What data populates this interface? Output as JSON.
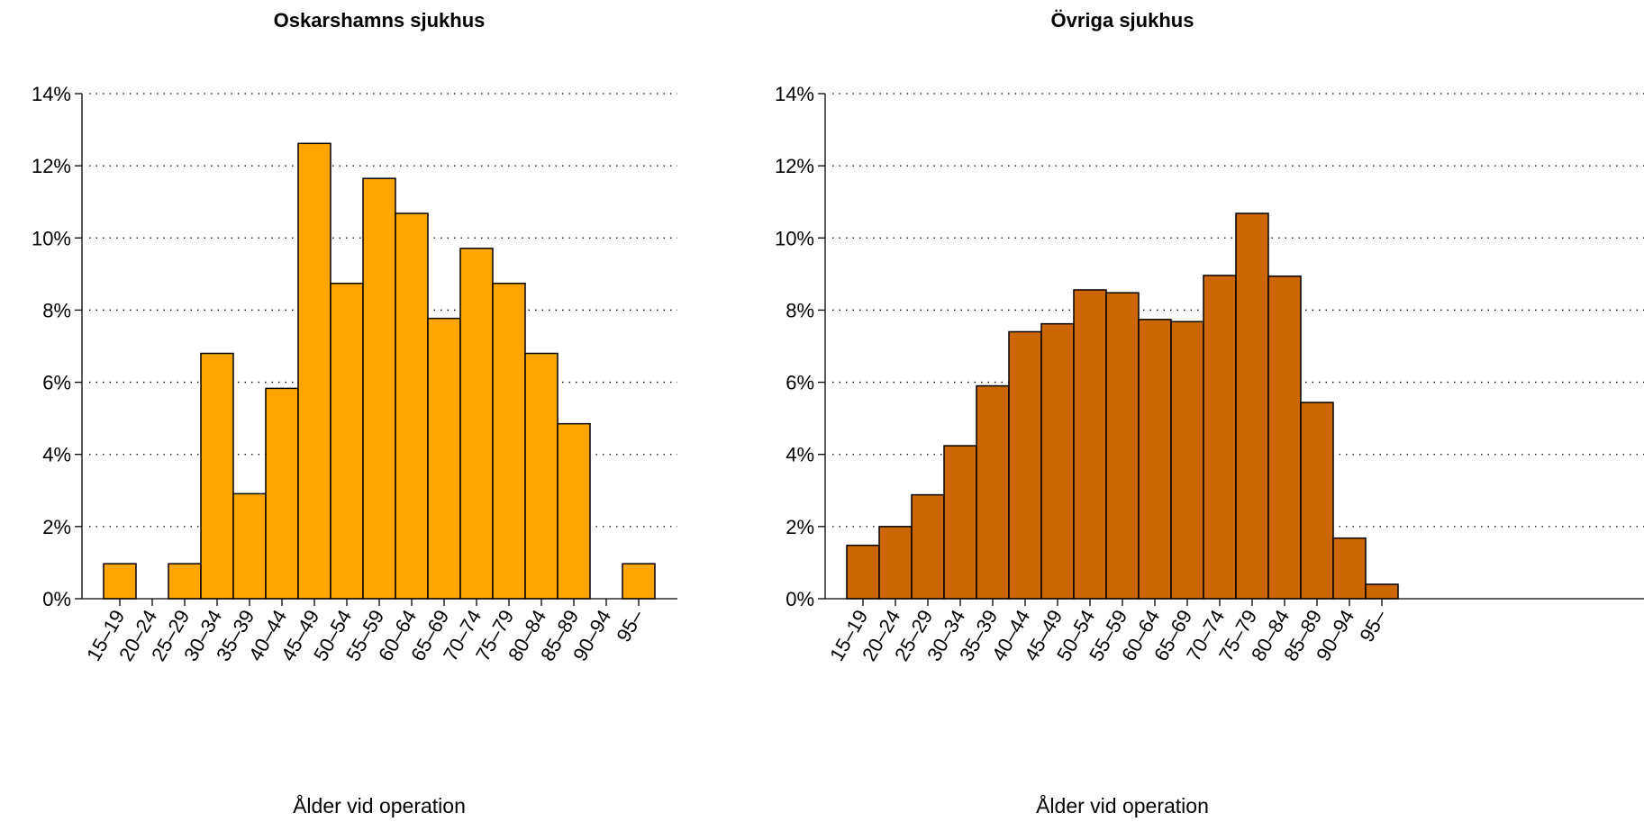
{
  "chart_data": [
    {
      "type": "bar",
      "title": "Oskarshamns sjukhus",
      "xlabel": "Ålder vid operation",
      "ylabel": "",
      "ylim": [
        0,
        14
      ],
      "yticks": [
        "0%",
        "2%",
        "4%",
        "6%",
        "8%",
        "10%",
        "12%",
        "14%"
      ],
      "grid": true,
      "color": "#FFA500",
      "categories": [
        "15–19",
        "20–24",
        "25–29",
        "30–34",
        "35–39",
        "40–44",
        "45–49",
        "50–54",
        "55–59",
        "60–64",
        "65–69",
        "70–74",
        "75–79",
        "80–84",
        "85–89",
        "90–94",
        "95–"
      ],
      "values": [
        0.97,
        0,
        0.97,
        6.8,
        2.91,
        5.83,
        12.62,
        8.74,
        11.65,
        10.68,
        7.77,
        9.71,
        8.74,
        6.8,
        4.85,
        0,
        0.97
      ]
    },
    {
      "type": "bar",
      "title": "Övriga sjukhus",
      "xlabel": "Ålder vid operation",
      "ylabel": "",
      "ylim": [
        0,
        14
      ],
      "yticks": [
        "0%",
        "2%",
        "4%",
        "6%",
        "8%",
        "10%",
        "12%",
        "14%"
      ],
      "grid": true,
      "color": "#CC6600",
      "categories": [
        "15–19",
        "20–24",
        "25–29",
        "30–34",
        "35–39",
        "40–44",
        "45–49",
        "50–54",
        "55–59",
        "60–64",
        "65–69",
        "70–74",
        "75–79",
        "80–84",
        "85–89",
        "90–94",
        "95–"
      ],
      "values": [
        1.48,
        2.0,
        2.88,
        4.24,
        5.9,
        7.4,
        7.62,
        8.56,
        8.48,
        7.74,
        7.68,
        8.96,
        10.68,
        8.94,
        5.44,
        1.68,
        0.4
      ]
    }
  ]
}
